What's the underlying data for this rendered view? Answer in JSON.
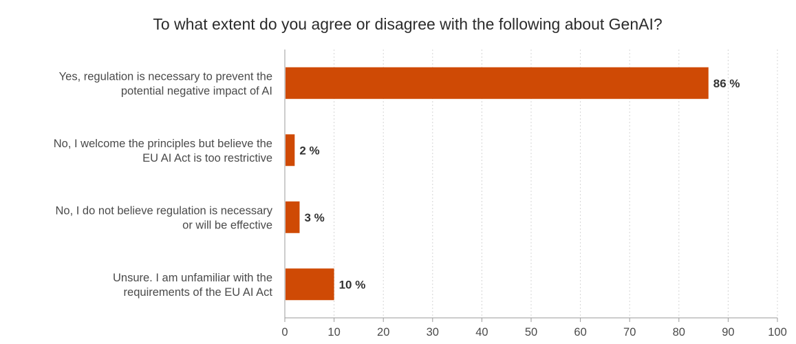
{
  "chart_data": {
    "type": "bar",
    "orientation": "horizontal",
    "title": "To what extent do you agree or disagree with the following about GenAI?",
    "categories": [
      [
        "Yes, regulation is necessary to prevent the",
        "potential negative impact of AI"
      ],
      [
        "No, I welcome the principles but believe the",
        "EU AI Act is too restrictive"
      ],
      [
        "No, I do not believe regulation is necessary",
        "or will be effective"
      ],
      [
        "Unsure. I am unfamiliar with the",
        "requirements of the EU AI Act"
      ]
    ],
    "values": [
      86,
      2,
      3,
      10
    ],
    "value_labels": [
      "86 %",
      "2 %",
      "3 %",
      "10 %"
    ],
    "xlim": [
      0,
      100
    ],
    "x_ticks": [
      "0",
      "10",
      "20",
      "30",
      "40",
      "50",
      "60",
      "70",
      "80",
      "90",
      "100"
    ],
    "grid": "vertical dotted",
    "bar_color": "#cf4a05"
  }
}
